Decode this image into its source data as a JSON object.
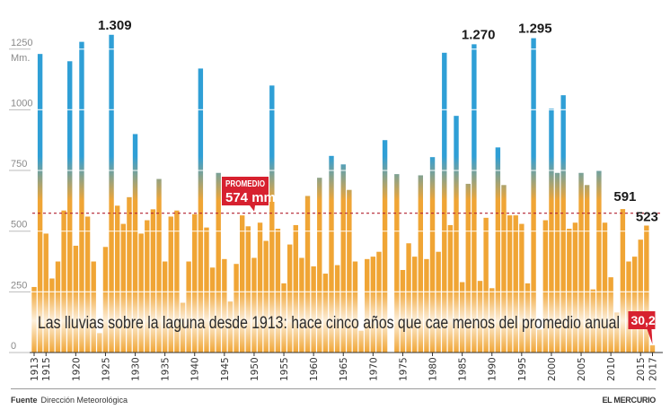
{
  "chart_data": {
    "type": "bar",
    "title": "Las lluvias sobre la laguna desde 1913: hace cinco años que cae menos del promedio anual",
    "ylabel": "Mm.",
    "xlabel": "",
    "ylim": [
      0,
      1300
    ],
    "yticks": [
      0,
      250,
      500,
      750,
      1000,
      1250
    ],
    "xticks": [
      1913,
      1915,
      1920,
      1925,
      1930,
      1935,
      1940,
      1945,
      1950,
      1955,
      1960,
      1965,
      1970,
      1975,
      1980,
      1985,
      1990,
      1995,
      2000,
      2005,
      2010,
      2015,
      2017
    ],
    "grid": true,
    "categories": [
      1913,
      1914,
      1915,
      1916,
      1917,
      1918,
      1919,
      1920,
      1921,
      1922,
      1923,
      1924,
      1925,
      1926,
      1927,
      1928,
      1929,
      1930,
      1931,
      1932,
      1933,
      1934,
      1935,
      1936,
      1937,
      1938,
      1939,
      1940,
      1941,
      1942,
      1943,
      1944,
      1945,
      1946,
      1947,
      1948,
      1949,
      1950,
      1951,
      1952,
      1953,
      1954,
      1955,
      1956,
      1957,
      1958,
      1959,
      1960,
      1961,
      1962,
      1963,
      1964,
      1965,
      1966,
      1967,
      1968,
      1969,
      1970,
      1971,
      1972,
      1973,
      1974,
      1975,
      1976,
      1977,
      1978,
      1979,
      1980,
      1981,
      1982,
      1983,
      1984,
      1985,
      1986,
      1987,
      1988,
      1989,
      1990,
      1991,
      1992,
      1993,
      1994,
      1995,
      1996,
      1997,
      1998,
      1999,
      2000,
      2001,
      2002,
      2003,
      2004,
      2005,
      2006,
      2007,
      2008,
      2009,
      2010,
      2011,
      2012,
      2013,
      2014,
      2015,
      2016,
      2017
    ],
    "values": [
      270,
      1230,
      490,
      305,
      375,
      585,
      1200,
      440,
      1280,
      560,
      375,
      80,
      435,
      1309,
      605,
      530,
      640,
      900,
      490,
      545,
      590,
      715,
      375,
      560,
      585,
      205,
      375,
      570,
      1170,
      515,
      350,
      740,
      385,
      210,
      365,
      565,
      520,
      390,
      535,
      460,
      1100,
      510,
      285,
      445,
      525,
      390,
      645,
      355,
      720,
      325,
      810,
      360,
      775,
      670,
      375,
      90,
      385,
      395,
      415,
      875,
      0,
      735,
      340,
      450,
      395,
      730,
      385,
      805,
      415,
      1235,
      525,
      975,
      290,
      695,
      1270,
      295,
      555,
      265,
      845,
      690,
      565,
      565,
      530,
      285,
      1295,
      95,
      545,
      1005,
      740,
      1060,
      510,
      535,
      740,
      690,
      260,
      750,
      535,
      310,
      165,
      591,
      375,
      395,
      465,
      523,
      30.2
    ],
    "average": {
      "value": 574,
      "label": "PROMEDIO",
      "value_label": "574 mm"
    },
    "annotations": [
      {
        "year": 1926,
        "label": "1.309"
      },
      {
        "year": 1987,
        "label": "1.270"
      },
      {
        "year": 1997,
        "label": "1.295"
      },
      {
        "year": 2012,
        "label": "591"
      },
      {
        "year": 2016,
        "label": "523"
      },
      {
        "year": 2017,
        "label": "30,2",
        "highlight": true
      }
    ],
    "colors": {
      "low": "#f0a535",
      "high": "#2f9fd6",
      "accent": "#d7212f",
      "average_line": "#b3202e"
    }
  },
  "footer": {
    "source_label": "Fuente",
    "source_value": "Dirección Meteorológica",
    "publisher": "EL MERCURIO"
  }
}
